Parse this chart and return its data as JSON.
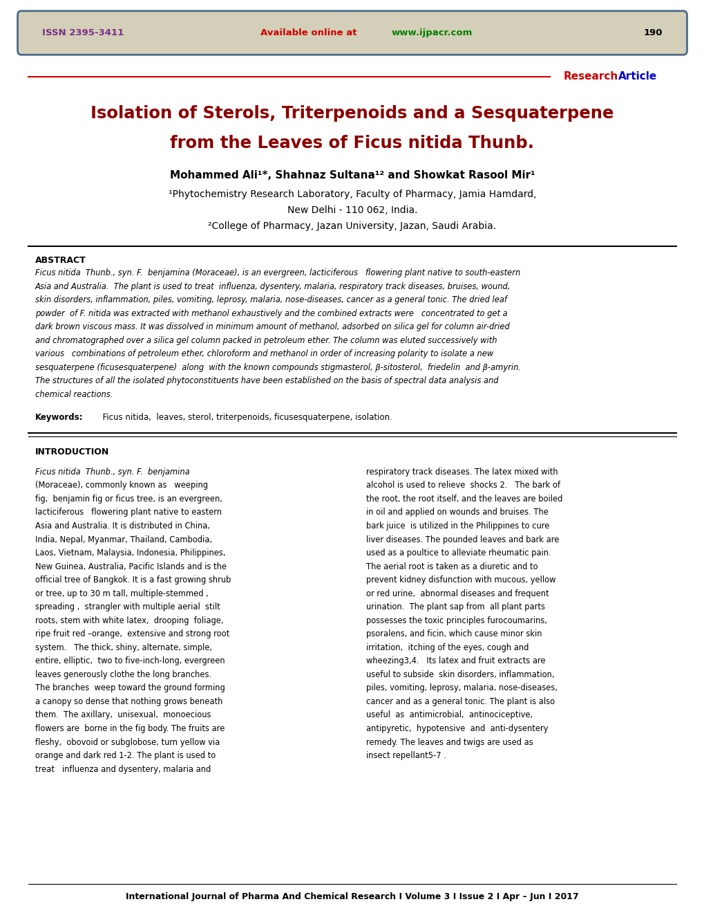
{
  "header_bg": "#d4cfb8",
  "header_border": "#4a6b8a",
  "header_issn": "ISSN 2395-3411",
  "header_issn_color": "#7b2d8b",
  "header_available": "Available online at ",
  "header_available_color": "#cc0000",
  "header_url": "www.ijpacr.com",
  "header_url_color": "#008000",
  "header_page": "190",
  "header_page_color": "#000000",
  "research_color": "#cc0000",
  "article_color": "#0000cc",
  "title_line1": "Isolation of Sterols, Triterpenoids and a Sesquaterpene",
  "title_line2_prefix": "from the Leaves of ",
  "title_line2_italic": "Ficus nitida",
  "title_line2_suffix": " Thunb.",
  "title_color": "#8b0000",
  "affil1": "¹Phytochemistry Research Laboratory, Faculty of Pharmacy, Jamia Hamdard,",
  "affil1b": "New Delhi - 110 062, India.",
  "affil2": "²College of Pharmacy, Jazan University, Jazan, Saudi Arabia.",
  "abstract_lines": [
    "Ficus nitida  Thunb., syn. F.  benjamina (Moraceae), is an evergreen, lacticiferous   flowering plant native to south-eastern",
    "Asia and Australia.  The plant is used to treat  influenza, dysentery, malaria, respiratory track diseases, bruises, wound,",
    "skin disorders, inflammation, piles, vomiting, leprosy, malaria, nose-diseases, cancer as a general tonic. The dried leaf",
    "powder  of F. nitida was extracted with methanol exhaustively and the combined extracts were   concentrated to get a",
    "dark brown viscous mass. It was dissolved in minimum amount of methanol, adsorbed on silica gel for column air-dried",
    "and chromatographed over a silica gel column packed in petroleum ether. The column was eluted successively with",
    "various   combinations of petroleum ether, chloroform and methanol in order of increasing polarity to isolate a new",
    "sesquaterpene (ficusesquaterpene)  along  with the known compounds stigmasterol, β-sitosterol,  friedelin  and β-amyrin.",
    "The structures of all the isolated phytoconstituents have been established on the basis of spectral data analysis and",
    "chemical reactions."
  ],
  "keywords_text": "  Ficus nitida,  leaves, sterol, triterpenoids, ficusesquaterpene, isolation.",
  "intro_col1_lines": [
    "Ficus nitida  Thunb., syn. F.  benjamina",
    "(Moraceae), commonly known as   weeping",
    "fig,  benjamin fig or ficus tree, is an evergreen,",
    "lacticiferous   flowering plant native to eastern",
    "Asia and Australia. It is distributed in China,",
    "India, Nepal, Myanmar, Thailand, Cambodia,",
    "Laos, Vietnam, Malaysia, Indonesia, Philippines,",
    "New Guinea, Australia, Pacific Islands and is the",
    "official tree of Bangkok. It is a fast growing shrub",
    "or tree, up to 30 m tall, multiple-stemmed ,",
    "spreading ,  strangler with multiple aerial  stilt",
    "roots, stem with white latex,  drooping  foliage,",
    "ripe fruit red –orange,  extensive and strong root",
    "system.   The thick, shiny, alternate, simple,",
    "entire, elliptic,  two to five-inch-long, evergreen",
    "leaves generously clothe the long branches.",
    "The branches  weep toward the ground forming",
    "a canopy so dense that nothing grows beneath",
    "them.  The axillary,  unisexual,  monoecious",
    "flowers are  borne in the fig body. The fruits are",
    "fleshy,  obovoid or subglobose, turn yellow via",
    "orange and dark red 1-2. The plant is used to",
    "treat   influenza and dysentery, malaria and"
  ],
  "intro_col2_lines": [
    "respiratory track diseases. The latex mixed with",
    "alcohol is used to relieve  shocks 2.   The bark of",
    "the root, the root itself, and the leaves are boiled",
    "in oil and applied on wounds and bruises. The",
    "bark juice  is utilized in the Philippines to cure",
    "liver diseases. The pounded leaves and bark are",
    "used as a poultice to alleviate rheumatic pain.",
    "The aerial root is taken as a diuretic and to",
    "prevent kidney disfunction with mucous, yellow",
    "or red urine,  abnormal diseases and frequent",
    "urination.  The plant sap from  all plant parts",
    "possesses the toxic principles furocoumarins,",
    "psoralens, and ficin, which cause minor skin",
    "irritation,  itching of the eyes, cough and",
    "wheezing3,4.   Its latex and fruit extracts are",
    "useful to subside  skin disorders, inflammation,",
    "piles, vomiting, leprosy, malaria, nose-diseases,",
    "cancer and as a general tonic. The plant is also",
    "useful  as  antimicrobial,  antinociceptive,",
    "antipyretic,  hypotensive  and  anti-dysentery",
    "remedy. The leaves and twigs are used as",
    "insect repellant5-7 ."
  ],
  "footer_text": "International Journal of Pharma And Chemical Research I Volume 3 I Issue 2 I Apr – Jun I 2017",
  "bg_color": "#ffffff",
  "text_color": "#000000"
}
